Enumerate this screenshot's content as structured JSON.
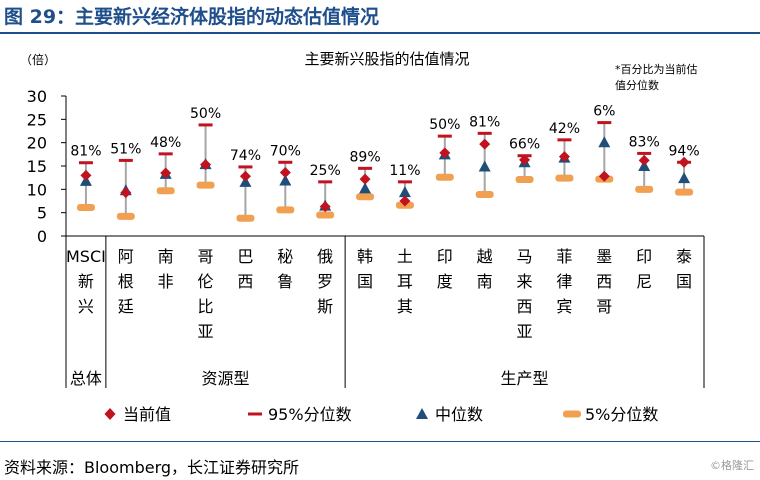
{
  "figure_title": "图 29：主要新兴经济体股指的动态估值情况",
  "source": "资料来源：Bloomberg，长江证券研究所",
  "watermark": "©格隆汇",
  "colors": {
    "current": "#c0121f",
    "p95": "#c0121f",
    "median": "#1f4e79",
    "p5": "#f0a050",
    "range_line": "#a6a6a6",
    "title_blue": "#1f4e8c"
  },
  "chart_data": {
    "type": "range",
    "title": "主要新兴股指的估值情况",
    "ylabel": "（倍）",
    "ylim": [
      0,
      30
    ],
    "yticks": [
      0,
      5,
      10,
      15,
      20,
      25,
      30
    ],
    "note": [
      "*百分比为当前估",
      "值分位数"
    ],
    "categories": [
      [
        "MSCI",
        "新",
        "兴"
      ],
      [
        "阿",
        "根",
        "廷"
      ],
      [
        "南",
        "非"
      ],
      [
        "哥",
        "伦",
        "比",
        "亚"
      ],
      [
        "巴",
        "西"
      ],
      [
        "秘",
        "鲁"
      ],
      [
        "俄",
        "罗",
        "斯"
      ],
      [
        "韩",
        "国"
      ],
      [
        "土",
        "耳",
        "其"
      ],
      [
        "印",
        "度"
      ],
      [
        "越",
        "南"
      ],
      [
        "马",
        "来",
        "西",
        "亚"
      ],
      [
        "菲",
        "律",
        "宾"
      ],
      [
        "墨",
        "西",
        "哥"
      ],
      [
        "印",
        "尼"
      ],
      [
        "泰",
        "国"
      ]
    ],
    "groups": [
      {
        "label": "总体",
        "count": 1
      },
      {
        "label": "资源型",
        "count": 6
      },
      {
        "label": "生产型",
        "count": 9
      }
    ],
    "percentile_labels": [
      "81%",
      "51%",
      "48%",
      "50%",
      "74%",
      "70%",
      "25%",
      "89%",
      "11%",
      "50%",
      "81%",
      "66%",
      "42%",
      "6%",
      "83%",
      "94%"
    ],
    "series": [
      {
        "name": "当前值",
        "marker": "diamond",
        "values": [
          13.0,
          9.3,
          13.5,
          15.3,
          12.8,
          13.6,
          6.3,
          12.2,
          7.5,
          17.8,
          19.7,
          16.3,
          17.0,
          12.8,
          16.2,
          15.8
        ]
      },
      {
        "name": "95%分位数",
        "marker": "dash",
        "values": [
          15.7,
          16.2,
          17.6,
          23.8,
          14.8,
          15.8,
          11.6,
          14.5,
          11.6,
          21.4,
          22.0,
          17.2,
          20.6,
          24.3,
          17.7,
          15.8
        ]
      },
      {
        "name": "中位数",
        "marker": "triangle",
        "values": [
          11.8,
          9.8,
          13.3,
          15.4,
          11.6,
          11.9,
          6.5,
          10.2,
          9.4,
          17.5,
          14.9,
          15.8,
          16.8,
          20.1,
          15.0,
          12.4
        ]
      },
      {
        "name": "5%分位数",
        "marker": "bar",
        "values": [
          6.1,
          4.2,
          9.7,
          10.9,
          3.8,
          5.6,
          4.5,
          8.4,
          6.6,
          12.6,
          8.9,
          12.1,
          12.4,
          12.2,
          10.0,
          9.4
        ]
      }
    ]
  }
}
